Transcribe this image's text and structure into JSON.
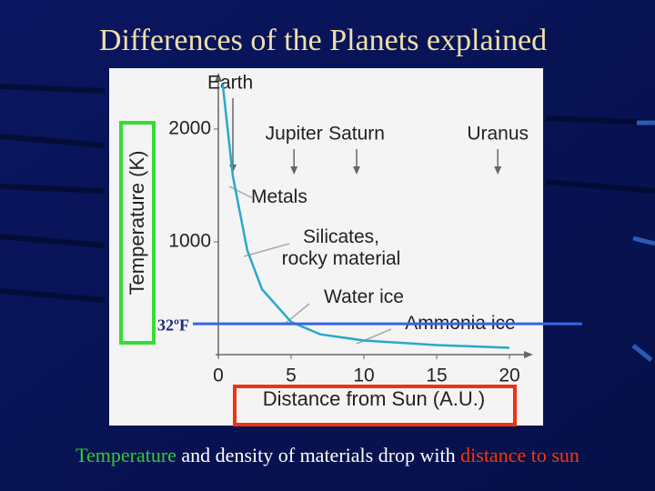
{
  "chart_data": {
    "type": "line",
    "title": "Differences of the Planets explained",
    "x_label": "Distance from Sun (A.U.)",
    "y_label": "Temperature (K)",
    "x": [
      0.3,
      1,
      2,
      3,
      5,
      7,
      10,
      15,
      20
    ],
    "values": [
      2400,
      1580,
      920,
      580,
      290,
      180,
      125,
      85,
      60
    ],
    "color": "#2aa8c8",
    "xlim": [
      0,
      21.5
    ],
    "ylim": [
      0,
      2500
    ],
    "xticks": [
      0,
      5,
      10,
      15,
      20
    ],
    "yticks": [
      1000,
      2000
    ],
    "planets": [
      {
        "label": "Earth",
        "x": 1
      },
      {
        "label": "Jupiter",
        "x": 5.2
      },
      {
        "label": "Saturn",
        "x": 9.5
      },
      {
        "label": "Uranus",
        "x": 19.2
      }
    ],
    "materials": [
      {
        "lines": [
          "Metals"
        ]
      },
      {
        "lines": [
          "Silicates,",
          "rocky material"
        ]
      },
      {
        "lines": [
          "Water ice"
        ]
      },
      {
        "lines": [
          "Ammonia ice"
        ]
      }
    ],
    "reference_line": {
      "label": "32ºF",
      "value": 273,
      "color": "#3366ee"
    }
  },
  "caption": [
    {
      "text": "Temperature",
      "color": "#33cc33"
    },
    {
      "text": " and density of materials drop with ",
      "color": "#ffffff"
    },
    {
      "text": "distance to sun",
      "color": "#ff3300"
    }
  ]
}
